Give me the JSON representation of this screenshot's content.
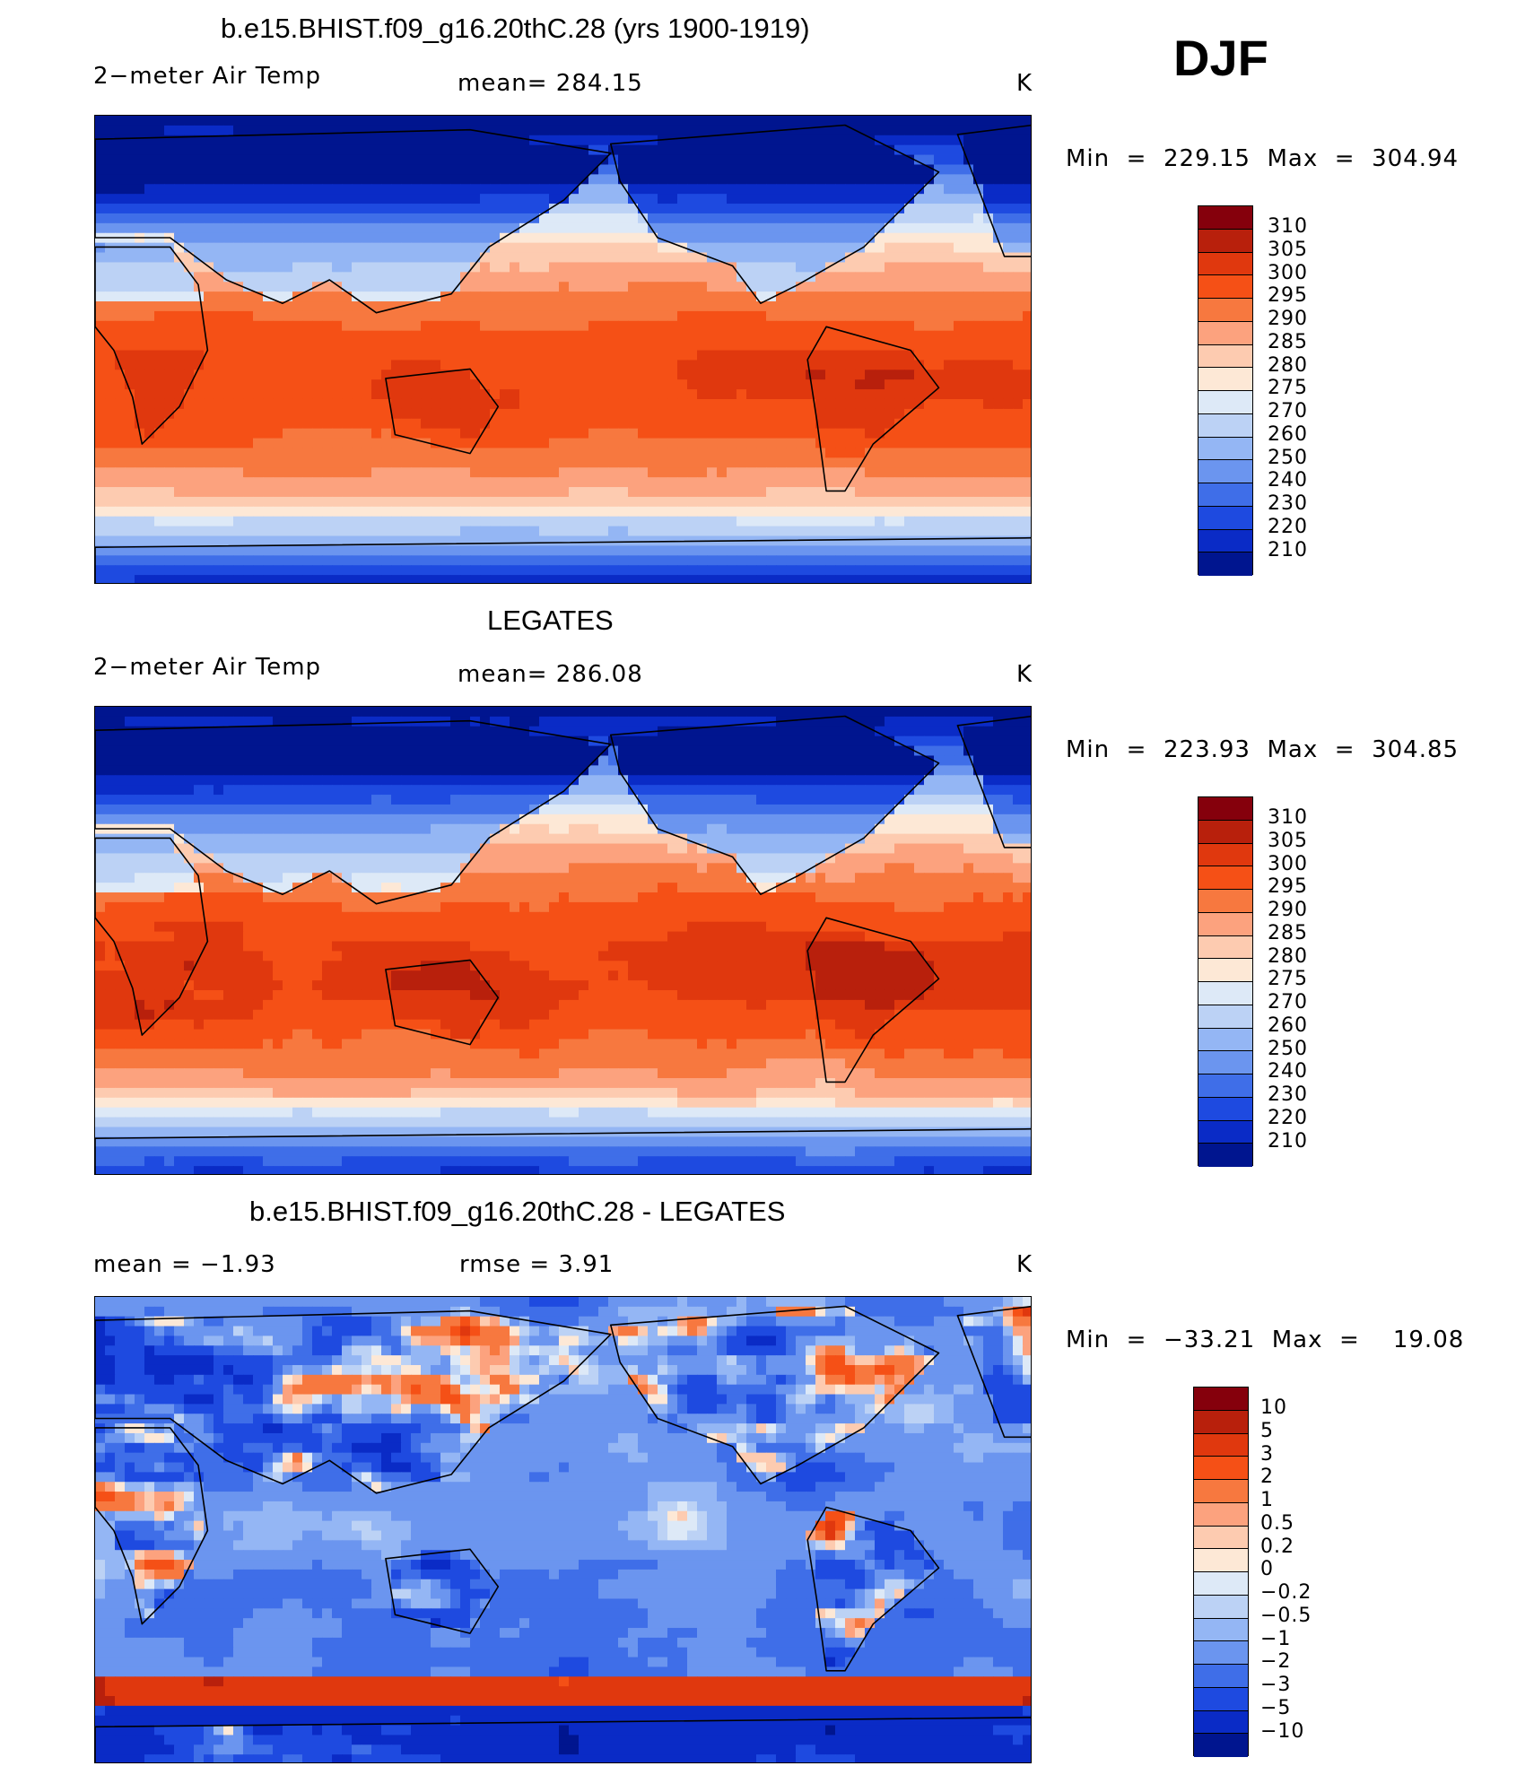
{
  "season": "DJF",
  "panels": [
    {
      "title": "b.e15.BHIST.f09_g16.20thC.28 (yrs 1900-1919)",
      "left_label": "2−meter Air Temp",
      "center_label": "mean=  284.15",
      "units": "K",
      "minmax": "Min  =  229.15  Max  =  304.94",
      "colorbar_labels": [
        "310",
        "305",
        "300",
        "295",
        "290",
        "285",
        "280",
        "275",
        "270",
        "260",
        "250",
        "240",
        "230",
        "220",
        "210"
      ],
      "field": "model"
    },
    {
      "title": "LEGATES",
      "left_label": "2−meter Air Temp",
      "center_label": "mean=  286.08",
      "units": "K",
      "minmax": "Min  =  223.93  Max  =  304.85",
      "colorbar_labels": [
        "310",
        "305",
        "300",
        "295",
        "290",
        "285",
        "280",
        "275",
        "270",
        "260",
        "250",
        "240",
        "230",
        "220",
        "210"
      ],
      "field": "obs"
    },
    {
      "title": "b.e15.BHIST.f09_g16.20thC.28 - LEGATES",
      "left_label": "mean  =     −1.93",
      "center_label": "rmse  =     3.91",
      "units": "K",
      "minmax": "Min  =  −33.21  Max  =    19.08",
      "colorbar_labels": [
        "10",
        "5",
        "3",
        "2",
        "1",
        "0.5",
        "0.2",
        "0",
        "−0.2",
        "−0.5",
        "−1",
        "−2",
        "−3",
        "−5",
        "−10"
      ],
      "field": "diff"
    }
  ],
  "colors": {
    "scale": [
      "#85000c",
      "#b8200c",
      "#e0380e",
      "#f55016",
      "#f7783f",
      "#fca27e",
      "#fdcbb0",
      "#fde8d6",
      "#dde9f7",
      "#bcd2f5",
      "#94b6f4",
      "#6b95ef",
      "#3f6ee8",
      "#1e4ae0",
      "#0a2bc6",
      "#00158f"
    ]
  }
}
